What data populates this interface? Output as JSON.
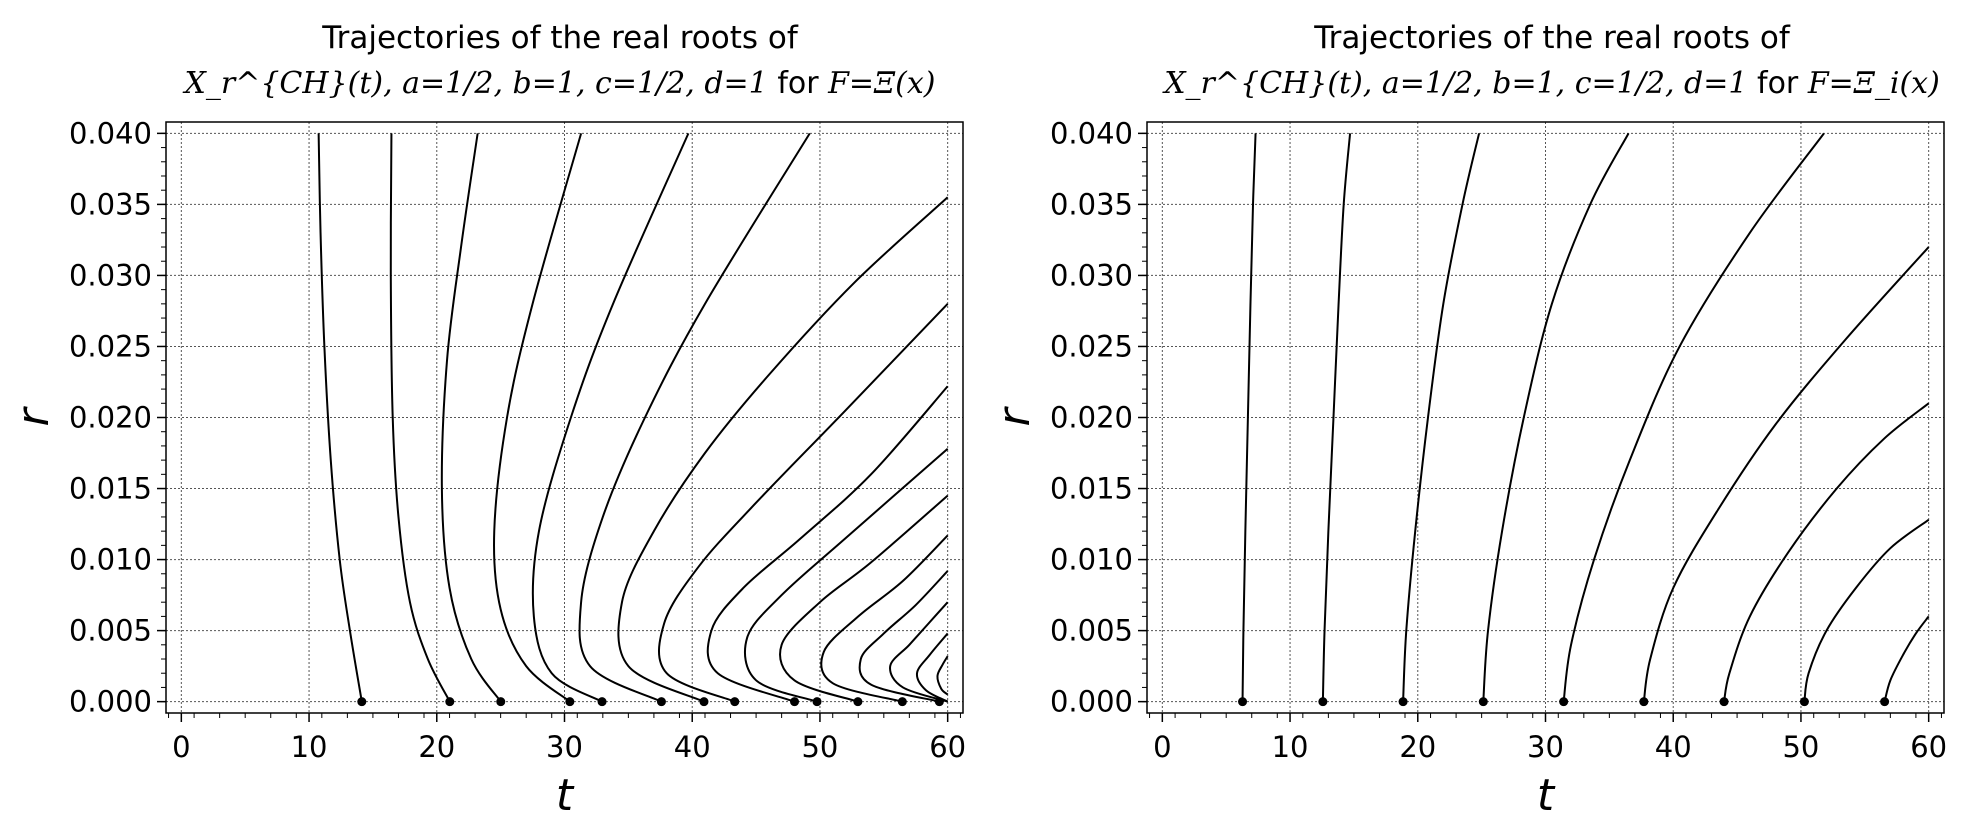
{
  "chart_data": [
    {
      "type": "line",
      "title": "Trajectories of the real roots of",
      "subtitle_math": "X_r^{CH}(t), a=1/2, b=1, c=1/2, d=1",
      "subtitle_for": "for",
      "subtitle_func": "F=Ξ(x)",
      "xlabel": "t",
      "ylabel": "r",
      "xlim": [
        -1.2,
        61.2
      ],
      "ylim": [
        -0.0008,
        0.0408
      ],
      "xticks": [
        "0",
        "10",
        "20",
        "30",
        "40",
        "50",
        "60"
      ],
      "yticks": [
        "0.000",
        "0.005",
        "0.010",
        "0.015",
        "0.020",
        "0.025",
        "0.030",
        "0.035",
        "0.040"
      ],
      "grid": true,
      "series": [
        {
          "x": [
            14.13,
            13.2,
            12.4,
            11.7,
            11.2,
            10.9,
            10.75
          ],
          "y": [
            0.0,
            0.005,
            0.01,
            0.017,
            0.025,
            0.033,
            0.04
          ]
        },
        {
          "x": [
            21.02,
            19.3,
            17.9,
            17.0,
            16.55,
            16.4,
            16.45
          ],
          "y": [
            0.0,
            0.003,
            0.007,
            0.013,
            0.02,
            0.03,
            0.04
          ]
        },
        {
          "x": [
            25.01,
            22.7,
            21.0,
            20.4,
            20.8,
            21.9,
            23.2
          ],
          "y": [
            0.0,
            0.003,
            0.008,
            0.015,
            0.024,
            0.032,
            0.04
          ]
        },
        {
          "x": [
            30.42,
            27.0,
            25.0,
            24.5,
            25.5,
            27.5,
            31.3
          ],
          "y": [
            0.0,
            0.0025,
            0.0065,
            0.012,
            0.02,
            0.028,
            0.04
          ]
        },
        {
          "x": [
            32.94,
            29.0,
            27.6,
            28.0,
            30.5,
            33.8,
            39.7
          ],
          "y": [
            0.0,
            0.002,
            0.006,
            0.012,
            0.02,
            0.028,
            0.04
          ]
        },
        {
          "x": [
            37.59,
            32.0,
            31.3,
            33.0,
            36.3,
            41.0,
            49.2
          ],
          "y": [
            0.0,
            0.0025,
            0.007,
            0.013,
            0.02,
            0.028,
            0.04
          ]
        },
        {
          "x": [
            40.92,
            35.0,
            34.5,
            37.0,
            41.0,
            46.0,
            52.7,
            60.0
          ],
          "y": [
            0.0,
            0.0025,
            0.007,
            0.012,
            0.0175,
            0.023,
            0.0295,
            0.0355
          ]
        },
        {
          "x": [
            43.33,
            38.0,
            37.8,
            40.5,
            45.0,
            52.0,
            60.0
          ],
          "y": [
            0.0,
            0.002,
            0.0055,
            0.0095,
            0.014,
            0.0205,
            0.028
          ]
        },
        {
          "x": [
            48.01,
            42.0,
            41.5,
            44.0,
            48.5,
            54.0,
            60.0
          ],
          "y": [
            0.0,
            0.002,
            0.005,
            0.008,
            0.0115,
            0.016,
            0.0222
          ]
        },
        {
          "x": [
            49.77,
            45.0,
            44.3,
            47.0,
            52.0,
            60.0
          ],
          "y": [
            0.0,
            0.0015,
            0.0045,
            0.0075,
            0.0115,
            0.0178
          ]
        },
        {
          "x": [
            52.97,
            48.0,
            47.0,
            50.0,
            54.0,
            60.0
          ],
          "y": [
            0.0,
            0.0015,
            0.004,
            0.007,
            0.0098,
            0.0145
          ]
        },
        {
          "x": [
            56.45,
            51.0,
            50.3,
            53.0,
            56.5,
            60.0
          ],
          "y": [
            0.0,
            0.0013,
            0.0035,
            0.006,
            0.0085,
            0.0117
          ]
        },
        {
          "x": [
            59.35,
            54.0,
            53.2,
            55.0,
            57.5,
            60.0
          ],
          "y": [
            0.0,
            0.0012,
            0.003,
            0.0048,
            0.0068,
            0.0092
          ]
        },
        {
          "x": [
            60.0,
            56.5,
            55.5,
            57.0,
            58.5,
            60.0
          ],
          "y": [
            0.0,
            0.001,
            0.0025,
            0.004,
            0.0055,
            0.007
          ]
        },
        {
          "x": [
            60.0,
            58.3,
            57.6,
            58.6,
            60.0
          ],
          "y": [
            0.0,
            0.0008,
            0.002,
            0.0033,
            0.0048
          ]
        },
        {
          "x": [
            60.0,
            59.5,
            59.2,
            59.6,
            60.0
          ],
          "y": [
            0.0005,
            0.0009,
            0.0018,
            0.0026,
            0.0032
          ]
        }
      ],
      "root_points": {
        "x": [
          14.13,
          21.02,
          25.01,
          30.42,
          32.94,
          37.59,
          40.92,
          43.33,
          48.01,
          49.77,
          52.97,
          56.45,
          59.35
        ],
        "y": [
          0,
          0,
          0,
          0,
          0,
          0,
          0,
          0,
          0,
          0,
          0,
          0,
          0
        ]
      }
    },
    {
      "type": "line",
      "title": "Trajectories of the real roots of",
      "subtitle_math": "X_r^{CH}(t), a=1/2, b=1, c=1/2, d=1",
      "subtitle_for": "for",
      "subtitle_func": "F=Ξ_i(x)",
      "xlabel": "t",
      "ylabel": "r",
      "xlim": [
        -1.2,
        61.2
      ],
      "ylim": [
        -0.0008,
        0.0408
      ],
      "xticks": [
        "0",
        "10",
        "20",
        "30",
        "40",
        "50",
        "60"
      ],
      "yticks": [
        "0.000",
        "0.005",
        "0.010",
        "0.015",
        "0.020",
        "0.025",
        "0.030",
        "0.035",
        "0.040"
      ],
      "grid": true,
      "series": [
        {
          "x": [
            6.28,
            6.35,
            6.5,
            6.7,
            6.9,
            7.1,
            7.3
          ],
          "y": [
            0.0,
            0.005,
            0.012,
            0.02,
            0.028,
            0.035,
            0.04
          ]
        },
        {
          "x": [
            12.57,
            12.7,
            13.0,
            13.4,
            13.8,
            14.2,
            14.7
          ],
          "y": [
            0.0,
            0.005,
            0.012,
            0.02,
            0.028,
            0.035,
            0.04
          ]
        },
        {
          "x": [
            18.85,
            19.1,
            19.8,
            20.8,
            22.0,
            23.5,
            24.8
          ],
          "y": [
            0.0,
            0.005,
            0.012,
            0.02,
            0.028,
            0.035,
            0.04
          ]
        },
        {
          "x": [
            25.13,
            25.5,
            26.6,
            28.3,
            30.5,
            33.5,
            36.5
          ],
          "y": [
            0.0,
            0.005,
            0.012,
            0.02,
            0.028,
            0.035,
            0.04
          ]
        },
        {
          "x": [
            31.42,
            32.0,
            33.8,
            36.6,
            40.5,
            46.0,
            51.8
          ],
          "y": [
            0.0,
            0.004,
            0.01,
            0.017,
            0.025,
            0.033,
            0.04
          ]
        },
        {
          "x": [
            37.7,
            38.2,
            40.0,
            43.5,
            48.0,
            53.5,
            60.0
          ],
          "y": [
            0.0,
            0.003,
            0.008,
            0.0135,
            0.0195,
            0.0255,
            0.032
          ]
        },
        {
          "x": [
            43.98,
            44.4,
            46.0,
            49.0,
            52.8,
            56.5,
            60.0
          ],
          "y": [
            0.0,
            0.002,
            0.006,
            0.0105,
            0.015,
            0.0185,
            0.021
          ]
        },
        {
          "x": [
            50.27,
            50.6,
            52.0,
            54.3,
            57.0,
            60.0
          ],
          "y": [
            0.0,
            0.002,
            0.005,
            0.008,
            0.0108,
            0.0128
          ]
        },
        {
          "x": [
            56.55,
            57.0,
            58.0,
            59.0,
            60.0
          ],
          "y": [
            0.0,
            0.0015,
            0.0033,
            0.0048,
            0.006
          ]
        }
      ],
      "root_points": {
        "x": [
          6.28,
          12.57,
          18.85,
          25.13,
          31.42,
          37.7,
          43.98,
          50.27,
          56.55
        ],
        "y": [
          0,
          0,
          0,
          0,
          0,
          0,
          0,
          0,
          0
        ]
      }
    }
  ]
}
